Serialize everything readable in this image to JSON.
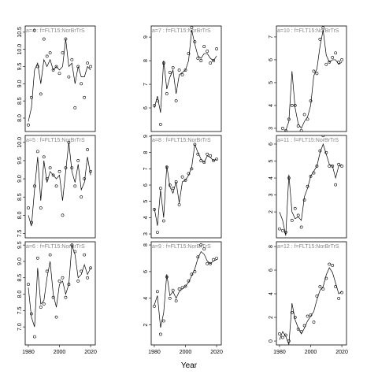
{
  "xlabel": "Year",
  "chart_data": [
    {
      "type": "scatter",
      "title": "a=4 : f=FLT15:NorBrTrS",
      "xlim": [
        1978,
        2023
      ],
      "ylim": [
        7.61,
        10.68
      ],
      "yticks": [
        {
          "value": 8,
          "label": "8.0"
        },
        8.5,
        {
          "value": 9,
          "label": "9.0"
        },
        9.5,
        {
          "value": 10,
          "label": "10.0"
        },
        10.5
      ],
      "x": [
        1980,
        1982,
        1984,
        1986,
        1988,
        1990,
        1992,
        1994,
        1996,
        1998,
        2000,
        2002,
        2004,
        2006,
        2008,
        2010,
        2012,
        2014,
        2016,
        2018,
        2020
      ],
      "series": [
        {
          "kind": "points",
          "color": "#000000",
          "values": [
            7.8,
            8.6,
            10.55,
            9.5,
            8.7,
            10.3,
            9.8,
            9.9,
            9.4,
            9.5,
            9.3,
            9.9,
            10.3,
            9.2,
            9.7,
            8.3,
            9.5,
            9.0,
            8.6,
            9.6,
            9.5
          ]
        },
        {
          "kind": "line",
          "color": "#000000",
          "values": [
            7.9,
            8.3,
            9.4,
            9.6,
            9.0,
            9.7,
            9.5,
            9.7,
            9.4,
            9.5,
            9.4,
            9.5,
            10.3,
            9.5,
            9.6,
            9.0,
            9.5,
            9.2,
            9.2,
            9.5,
            9.4
          ]
        }
      ]
    },
    {
      "type": "scatter",
      "title": "a=7 : f=FLT15:NorBrTrS",
      "xlim": [
        1978,
        2023
      ],
      "ylim": [
        5.0,
        9.47
      ],
      "yticks": [
        6,
        7,
        8,
        9
      ],
      "x": [
        1980,
        1982,
        1984,
        1986,
        1988,
        1990,
        1992,
        1994,
        1996,
        1998,
        2000,
        2002,
        2004,
        2006,
        2008,
        2010,
        2012,
        2014,
        2016,
        2018,
        2020
      ],
      "series": [
        {
          "kind": "points",
          "color": "#000000",
          "values": [
            6.1,
            6.3,
            5.3,
            7.9,
            6.6,
            7.5,
            7.7,
            6.3,
            7.6,
            7.4,
            7.6,
            8.3,
            9.4,
            8.8,
            8.1,
            8.0,
            8.6,
            8.4,
            7.9,
            8.0,
            8.5
          ]
        },
        {
          "kind": "line",
          "color": "#000000",
          "values": [
            6.0,
            6.5,
            5.8,
            8.0,
            6.8,
            7.3,
            7.6,
            6.6,
            7.4,
            7.5,
            7.6,
            8.0,
            9.3,
            8.7,
            8.2,
            8.1,
            8.3,
            8.3,
            8.1,
            8.0,
            8.2
          ]
        }
      ]
    },
    {
      "type": "scatter",
      "title": "a=10 : f=FLT15:NorBrTrS",
      "xlim": [
        1978,
        2023
      ],
      "ylim": [
        2.86,
        7.48
      ],
      "yticks": [
        3,
        4,
        5,
        6,
        7
      ],
      "x": [
        1980,
        1982,
        1984,
        1986,
        1988,
        1990,
        1992,
        1994,
        1996,
        1998,
        2000,
        2002,
        2004,
        2006,
        2008,
        2010,
        2012,
        2014,
        2016,
        2018,
        2020
      ],
      "series": [
        {
          "kind": "points",
          "color": "#000000",
          "values": [
            2.8,
            3.0,
            2.9,
            3.4,
            4.0,
            4.0,
            3.1,
            2.9,
            3.6,
            3.4,
            4.2,
            5.5,
            5.4,
            6.9,
            7.4,
            5.8,
            5.9,
            6.1,
            6.3,
            5.9,
            6.0
          ]
        },
        {
          "kind": "line",
          "color": "#000000",
          "values": [
            2.7,
            2.5,
            2.9,
            3.3,
            5.5,
            3.9,
            3.2,
            3.0,
            3.3,
            3.5,
            4.0,
            5.3,
            5.6,
            6.6,
            7.3,
            6.2,
            5.9,
            6.0,
            6.0,
            5.8,
            5.9
          ]
        }
      ]
    },
    {
      "type": "scatter",
      "title": "a=5 : f=FLT15:NorBrTrS",
      "xlim": [
        1978,
        2023
      ],
      "ylim": [
        7.38,
        10.19
      ],
      "yticks": [
        7.5,
        {
          "value": 8,
          "label": "8.0"
        },
        8.5,
        {
          "value": 9,
          "label": "9.0"
        },
        9.5,
        {
          "value": 10,
          "label": "10.0"
        }
      ],
      "x": [
        1980,
        1982,
        1984,
        1986,
        1988,
        1990,
        1992,
        1994,
        1996,
        1998,
        2000,
        2002,
        2004,
        2006,
        2008,
        2010,
        2012,
        2014,
        2016,
        2018,
        2020
      ],
      "series": [
        {
          "kind": "points",
          "color": "#000000",
          "values": [
            8.2,
            7.8,
            8.8,
            9.75,
            8.2,
            9.6,
            9.0,
            9.3,
            9.1,
            8.8,
            9.2,
            8.0,
            9.3,
            10.0,
            9.3,
            8.8,
            9.5,
            8.5,
            9.0,
            9.8,
            9.2
          ]
        },
        {
          "kind": "line",
          "color": "#000000",
          "values": [
            8.0,
            7.7,
            8.7,
            9.6,
            8.4,
            9.5,
            8.9,
            9.2,
            9.1,
            9.0,
            9.1,
            8.4,
            9.2,
            10.0,
            9.2,
            8.9,
            9.4,
            8.7,
            8.9,
            9.6,
            9.1
          ]
        }
      ]
    },
    {
      "type": "scatter",
      "title": "a=8 : f=FLT15:NorBrTrS",
      "xlim": [
        1978,
        2023
      ],
      "ylim": [
        2.76,
        9.05
      ],
      "yticks": [
        3,
        4,
        5,
        6,
        7,
        8,
        9
      ],
      "x": [
        1980,
        1982,
        1984,
        1986,
        1988,
        1990,
        1992,
        1994,
        1996,
        1998,
        2000,
        2002,
        2004,
        2006,
        2008,
        2010,
        2012,
        2014,
        2016,
        2018,
        2020
      ],
      "series": [
        {
          "kind": "points",
          "color": "#000000",
          "values": [
            4.5,
            3.1,
            5.8,
            3.8,
            7.1,
            6.0,
            5.8,
            6.2,
            4.8,
            6.5,
            6.3,
            6.7,
            7.0,
            8.5,
            7.9,
            7.5,
            7.4,
            7.9,
            7.8,
            7.5,
            7.6
          ]
        },
        {
          "kind": "line",
          "color": "#000000",
          "values": [
            4.6,
            3.5,
            5.7,
            4.0,
            7.2,
            5.9,
            5.5,
            6.2,
            4.9,
            6.2,
            6.3,
            6.6,
            7.1,
            8.5,
            8.0,
            7.6,
            7.4,
            7.8,
            7.7,
            7.5,
            7.6
          ]
        }
      ]
    },
    {
      "type": "scatter",
      "title": "a=11 : f=FLT15:NorBrTrS",
      "xlim": [
        1978,
        2023
      ],
      "ylim": [
        0.47,
        6.51
      ],
      "yticks": [
        2,
        3,
        4,
        5,
        6
      ],
      "x": [
        1980,
        1982,
        1984,
        1986,
        1988,
        1990,
        1992,
        1994,
        1996,
        1998,
        2000,
        2002,
        2004,
        2006,
        2008,
        2010,
        2012,
        2014,
        2016,
        2018,
        2020
      ],
      "series": [
        {
          "kind": "points",
          "color": "#000000",
          "values": [
            1.0,
            0.9,
            0.8,
            4.0,
            1.5,
            2.2,
            1.8,
            1.1,
            2.7,
            3.5,
            4.1,
            4.3,
            4.7,
            5.6,
            6.5,
            5.5,
            4.7,
            4.7,
            3.6,
            4.8,
            4.7
          ]
        },
        {
          "kind": "line",
          "color": "#000000",
          "values": [
            2.0,
            1.5,
            0.6,
            4.2,
            2.0,
            1.6,
            1.7,
            1.5,
            2.9,
            3.4,
            4.1,
            4.4,
            4.7,
            5.5,
            6.0,
            5.4,
            4.8,
            4.7,
            4.0,
            4.7,
            4.8
          ]
        }
      ]
    },
    {
      "type": "scatter",
      "title": "a=6 : f=FLT15:NorBrTrS",
      "xlim": [
        1978,
        2023
      ],
      "ylim": [
        6.45,
        9.6
      ],
      "xticks": [
        1980,
        2000,
        2020
      ],
      "yticks": [
        {
          "value": 7,
          "label": "7.0"
        },
        7.5,
        {
          "value": 8,
          "label": "8.0"
        },
        8.5,
        {
          "value": 9,
          "label": "9.0"
        },
        9.5
      ],
      "x": [
        1980,
        1982,
        1984,
        1986,
        1988,
        1990,
        1992,
        1994,
        1996,
        1998,
        2000,
        2002,
        2004,
        2006,
        2008,
        2010,
        2012,
        2014,
        2016,
        2018,
        2020
      ],
      "series": [
        {
          "kind": "points",
          "color": "#000000",
          "values": [
            8.3,
            7.4,
            6.7,
            9.1,
            7.6,
            7.7,
            8.7,
            9.2,
            7.9,
            7.3,
            8.4,
            8.5,
            7.9,
            8.3,
            9.5,
            9.3,
            8.4,
            8.7,
            9.2,
            8.5,
            8.8
          ]
        },
        {
          "kind": "line",
          "color": "#000000",
          "values": [
            8.2,
            7.3,
            7.0,
            8.8,
            7.7,
            7.8,
            8.5,
            9.0,
            8.0,
            7.6,
            8.3,
            8.4,
            8.0,
            8.3,
            9.5,
            9.2,
            8.5,
            8.6,
            8.9,
            8.6,
            8.8
          ]
        }
      ]
    },
    {
      "type": "scatter",
      "title": "a=9 : f=FLT15:NorBrTrS",
      "xlim": [
        1978,
        2023
      ],
      "ylim": [
        0.5,
        8.24
      ],
      "xticks": [
        1980,
        2000,
        2020
      ],
      "yticks": [
        2,
        4,
        6,
        8
      ],
      "x": [
        1980,
        1982,
        1984,
        1986,
        1988,
        1990,
        1992,
        1994,
        1996,
        1998,
        2000,
        2002,
        2004,
        2006,
        2008,
        2010,
        2012,
        2014,
        2016,
        2018,
        2020
      ],
      "series": [
        {
          "kind": "points",
          "color": "#000000",
          "values": [
            3.4,
            4.5,
            1.3,
            2.3,
            5.6,
            4.0,
            4.6,
            3.8,
            4.7,
            4.8,
            4.9,
            5.3,
            5.8,
            6.0,
            7.1,
            8.0,
            7.7,
            6.6,
            6.6,
            6.9,
            7.0
          ]
        },
        {
          "kind": "line",
          "color": "#000000",
          "values": [
            3.5,
            4.2,
            1.8,
            2.9,
            5.8,
            4.2,
            4.5,
            4.0,
            4.5,
            4.7,
            4.9,
            5.2,
            5.7,
            6.2,
            7.0,
            7.5,
            7.3,
            6.8,
            6.6,
            6.8,
            6.9
          ]
        }
      ]
    },
    {
      "type": "scatter",
      "title": "a=12 : f=FLT15:NorBrTrS",
      "xlim": [
        1978,
        2023
      ],
      "ylim": [
        -0.33,
        8.4
      ],
      "xticks": [
        1980,
        2000,
        2020
      ],
      "yticks": [
        0,
        2,
        4,
        6,
        8
      ],
      "x": [
        1980,
        1982,
        1984,
        1986,
        1988,
        1990,
        1992,
        1994,
        1996,
        1998,
        2000,
        2002,
        2004,
        2006,
        2008,
        2010,
        2012,
        2014,
        2016,
        2018,
        2020
      ],
      "series": [
        {
          "kind": "points",
          "color": "#000000",
          "values": [
            0.6,
            0.3,
            0.5,
            0.0,
            2.4,
            2.0,
            1.0,
            0.8,
            1.3,
            2.1,
            2.2,
            1.6,
            3.8,
            4.6,
            4.4,
            5.3,
            6.5,
            6.4,
            4.6,
            3.6,
            4.1
          ]
        },
        {
          "kind": "line",
          "color": "#000000",
          "values": [
            0.1,
            0.8,
            0.4,
            -0.3,
            3.2,
            1.8,
            1.1,
            0.6,
            1.1,
            1.7,
            2.1,
            2.5,
            3.5,
            4.3,
            4.6,
            5.6,
            6.2,
            5.8,
            4.9,
            4.0,
            4.2
          ]
        }
      ]
    }
  ]
}
